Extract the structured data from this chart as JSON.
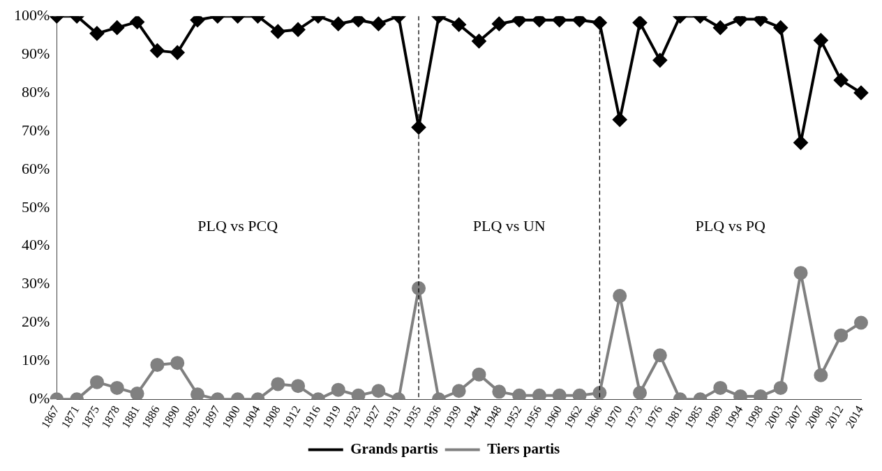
{
  "chart_data": {
    "type": "line",
    "categories": [
      "1867",
      "1871",
      "1875",
      "1878",
      "1881",
      "1886",
      "1890",
      "1892",
      "1897",
      "1900",
      "1904",
      "1908",
      "1912",
      "1916",
      "1919",
      "1923",
      "1927",
      "1931",
      "1935",
      "1936",
      "1939",
      "1944",
      "1948",
      "1952",
      "1956",
      "1960",
      "1962",
      "1966",
      "1970",
      "1973",
      "1976",
      "1981",
      "1985",
      "1989",
      "1994",
      "1998",
      "2003",
      "2007",
      "2008",
      "2012",
      "2014"
    ],
    "series": [
      {
        "name": "Grands partis",
        "color": "#000000",
        "marker": "diamond",
        "values": [
          100,
          100,
          95.5,
          97,
          98.5,
          91,
          90.5,
          99,
          100,
          100,
          100,
          96,
          96.5,
          100,
          98,
          99,
          98,
          100,
          71,
          100,
          97.8,
          93.5,
          98,
          99,
          99,
          99,
          99,
          98.3,
          73,
          98.3,
          88.5,
          100,
          100,
          97,
          99.2,
          99.2,
          97,
          67,
          93.7,
          83.3,
          80
        ]
      },
      {
        "name": "Tiers partis",
        "color": "#808080",
        "marker": "circle",
        "values": [
          0,
          0,
          4.5,
          3,
          1.5,
          9,
          9.5,
          1.3,
          0,
          0,
          0,
          4,
          3.5,
          0,
          2.5,
          1,
          2.2,
          0,
          29,
          0,
          2.2,
          6.5,
          2,
          1,
          1,
          1,
          1,
          1.7,
          27,
          1.7,
          11.5,
          0,
          0,
          3,
          0.8,
          0.8,
          3,
          33,
          6.3,
          16.7,
          20
        ]
      }
    ],
    "ylim": [
      0,
      100
    ],
    "yticks": [
      {
        "value": 0,
        "label": "0%"
      },
      {
        "value": 10,
        "label": "10%"
      },
      {
        "value": 20,
        "label": "20%"
      },
      {
        "value": 30,
        "label": "30%"
      },
      {
        "value": 40,
        "label": "40%"
      },
      {
        "value": 50,
        "label": "50%"
      },
      {
        "value": 60,
        "label": "60%"
      },
      {
        "value": 70,
        "label": "70%"
      },
      {
        "value": 80,
        "label": "80%"
      },
      {
        "value": 90,
        "label": "90%"
      },
      {
        "value": 100,
        "label": "100%"
      }
    ],
    "ref_lines": [
      {
        "axis": "x",
        "value": "1935",
        "color": "#000000",
        "line_style": "dashed"
      },
      {
        "axis": "x",
        "value": "1966",
        "color": "#000000",
        "line_style": "dashed"
      }
    ],
    "annotations": [
      "PLQ vs PCQ",
      "PLQ vs UN",
      "PLQ vs PQ"
    ],
    "grid": false,
    "legend": "bottom",
    "line_style": "solid"
  }
}
